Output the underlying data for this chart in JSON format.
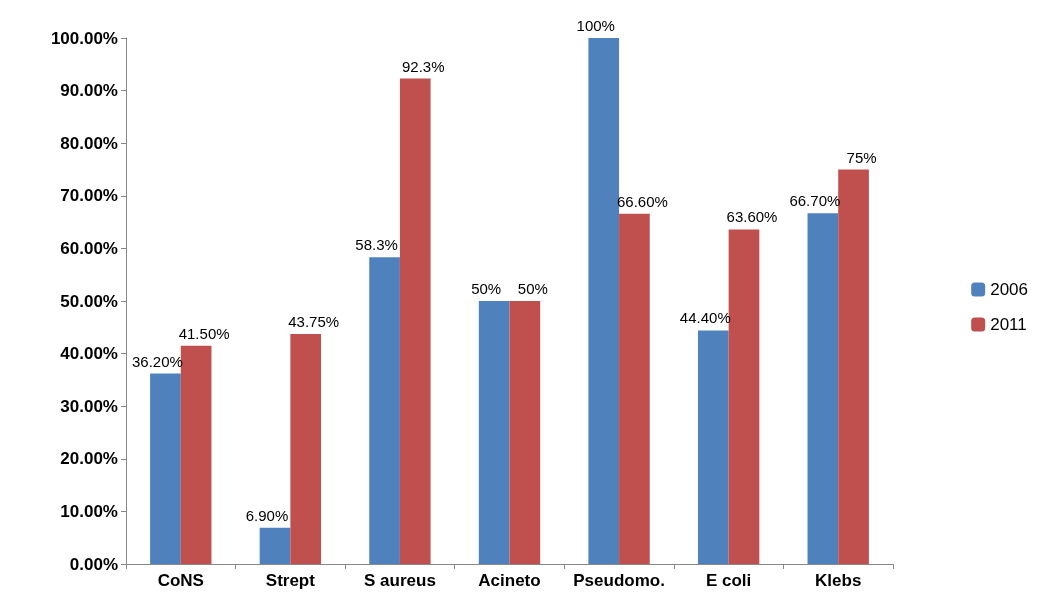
{
  "chart_data": {
    "type": "bar",
    "categories": [
      "CoNS",
      "Strept",
      "S aureus",
      "Acineto",
      "Pseudomo.",
      "E coli",
      "Klebs"
    ],
    "series": [
      {
        "name": "2006",
        "color": "#4f81bd",
        "values": [
          36.2,
          6.9,
          58.3,
          50,
          100,
          44.4,
          66.7
        ],
        "value_labels": [
          "36.20%",
          "6.90%",
          "58.3%",
          "50%",
          "100%",
          "44.40%",
          "66.70%"
        ]
      },
      {
        "name": "2011",
        "color": "#c0504d",
        "values": [
          41.5,
          43.75,
          92.3,
          50,
          66.6,
          63.6,
          75
        ],
        "value_labels": [
          "41.50%",
          "43.75%",
          "92.3%",
          "50%",
          "66.60%",
          "63.60%",
          "75%"
        ]
      }
    ],
    "ylim": [
      0,
      100
    ],
    "yticks": [
      {
        "value": 0,
        "label": "0.00%"
      },
      {
        "value": 10,
        "label": "10.00%"
      },
      {
        "value": 20,
        "label": "20.00%"
      },
      {
        "value": 30,
        "label": "30.00%"
      },
      {
        "value": 40,
        "label": "40.00%"
      },
      {
        "value": 50,
        "label": "50.00%"
      },
      {
        "value": 60,
        "label": "60.00%"
      },
      {
        "value": 70,
        "label": "70.00%"
      },
      {
        "value": 80,
        "label": "80.00%"
      },
      {
        "value": 90,
        "label": "90.00%"
      },
      {
        "value": 100,
        "label": "100.00%"
      }
    ],
    "grid": false,
    "legend": "right"
  }
}
